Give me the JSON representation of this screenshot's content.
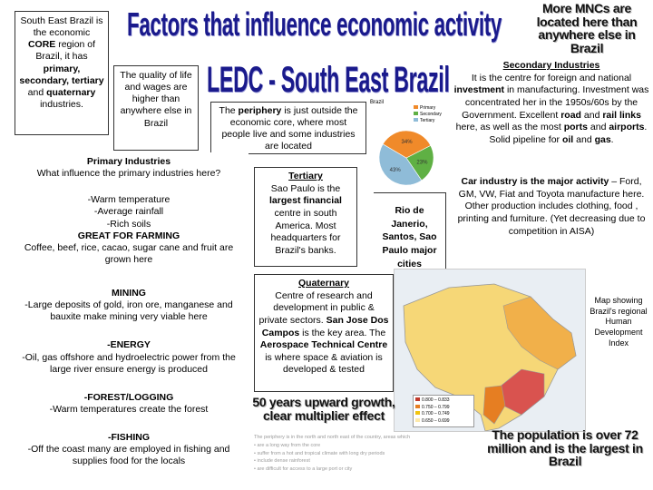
{
  "title_main": "Factors that influence economic activity",
  "title_sub": "LEDC - South East Brazil",
  "mnc_slogan": "More MNCs are located here than anywhere else in Brazil",
  "intro": {
    "t1": "South East Brazil is the economic ",
    "b1": "CORE",
    "t2": " region of Brazil, it has ",
    "b2": "primary, secondary, tertiary",
    "t3": " and ",
    "b3": "quaternary",
    "t4": " industries."
  },
  "quality_box": "The quality of life and wages are higher than anywhere else in Brazil",
  "periphery_box": {
    "t1": "The ",
    "b1": "periphery",
    "t2": " is just outside the economic core, where most people live and some industries are located"
  },
  "pie": {
    "title": "Brazil",
    "legend": [
      "Primary",
      "Secondary",
      "Tertiary"
    ],
    "colors": [
      "#f08a2a",
      "#5fb044",
      "#8fbcd8"
    ],
    "values": [
      34,
      23,
      43
    ],
    "labels": [
      "34%",
      "23%",
      "43%"
    ]
  },
  "secondary": {
    "heading": "Secondary Industries",
    "p1a": "It is the centre for foreign and national ",
    "p1b": "investment",
    "p1c": " in manufacturing. Investment was concentrated her in the 1950s/60s by the Government. Excellent ",
    "p1d": "road",
    "p1e": " and ",
    "p1f": "rail links",
    "p1g": " here, as well as the most ",
    "p1h": "ports",
    "p1i": " and ",
    "p1j": "airports",
    "p1k": ". Solid pipeline for ",
    "p1l": "oil",
    "p1m": " and ",
    "p1n": "gas",
    "p1o": ".",
    "p2a": "Car industry is the major activity",
    "p2b": " – Ford, GM, VW, Fiat and Toyota manufacture here.",
    "p3": "Other production includes clothing, food , printing and furniture. (Yet decreasing due to competition in AISA)"
  },
  "primary": {
    "heading": "Primary Industries",
    "question": "What influence the primary industries here?",
    "farm_list": "-Warm temperature\n-Average rainfall\n-Rich soils",
    "farm_heading": "GREAT FOR FARMING",
    "farm_crops": "Coffee, beef, rice, cacao, sugar cane and fruit are grown here",
    "mining_heading": "MINING",
    "mining_text": "-Large deposits of gold, iron ore, manganese and bauxite make mining very viable here",
    "energy_heading": "-ENERGY",
    "energy_text": "-Oil, gas offshore and hydroelectric power from the large river ensure energy is produced",
    "forest_heading": "-FOREST/LOGGING",
    "forest_text": "-Warm temperatures create the forest",
    "fishing_heading": "-FISHING",
    "fishing_text": "-Off the coast many are employed in fishing and supplies food for the locals"
  },
  "tertiary": {
    "heading": "Tertiary",
    "t1": "Sao Paulo is the ",
    "b1": "largest financial",
    "t2": " centre in south America. Most headquarters for Brazil's banks."
  },
  "cities_box": "Rio de Janerio, Santos, Sao Paulo major cities",
  "quaternary": {
    "heading": "Quaternary",
    "t1": "Centre of research and development in public & private sectors. ",
    "b1": "San Jose Dos Campos",
    "t2": " is the key area. The ",
    "b2": "Aerospace Technical Centre",
    "t3": " is where space & aviation is developed & tested"
  },
  "map_caption": "Map showing Brazil's regional Human Development Index",
  "map_legend": [
    "0.800 – 0.833",
    "0.750 – 0.799",
    "0.700 – 0.749",
    "0.650 – 0.699"
  ],
  "map_legend_colors": [
    "#c0392b",
    "#e67e22",
    "#f1c40f",
    "#fde9a9"
  ],
  "growth_slogan": "50 years upward growth, clear multiplier effect",
  "population_slogan": "The population is over 72 million and is the largest in Brazil",
  "bottom_text": {
    "intro": "The periphery is in the north and north east of the country, areas which",
    "lines": [
      "are a long way from the core",
      "suffer from a hot and tropical climate with long dry periods",
      "include dense rainforest",
      "are difficult for access to a large port or city"
    ]
  }
}
